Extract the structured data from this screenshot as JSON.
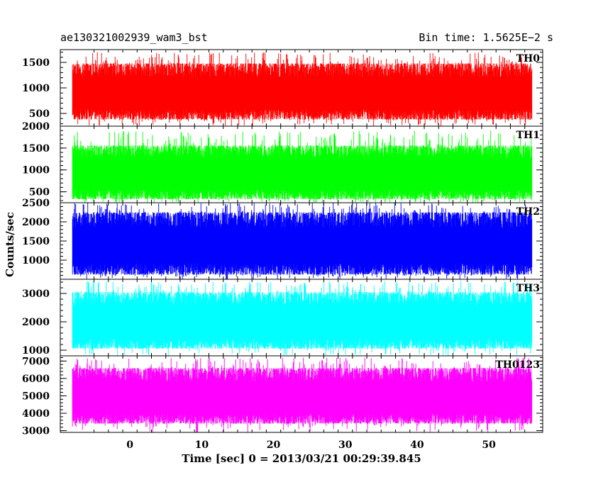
{
  "header": {
    "title_left": "ae130321002939_wam3_bst",
    "title_right": "Bin time: 1.5625E−2 s"
  },
  "axes": {
    "xlabel": "Time [sec] 0 = 2013/03/21 00:29:39.845",
    "ylabel": "Counts/sec"
  },
  "chart_data": {
    "type": "line",
    "x_range": [
      -8.0,
      56.0
    ],
    "xlim": [
      -9.7,
      57.5
    ],
    "x_ticks": [
      0,
      10,
      20,
      30,
      40,
      50
    ],
    "panels": [
      {
        "name": "TH0",
        "color": "#ff0000",
        "ylim": [
          250,
          1750
        ],
        "y_ticks": [
          500,
          1000,
          1500
        ],
        "low": 380,
        "high": 1480,
        "peak": 1700
      },
      {
        "name": "TH1",
        "color": "#00ff00",
        "ylim": [
          250,
          2000
        ],
        "y_ticks": [
          500,
          1000,
          1500,
          2000
        ],
        "low": 330,
        "high": 1560,
        "peak": 1900
      },
      {
        "name": "TH2",
        "color": "#0000ff",
        "ylim": [
          500,
          2500
        ],
        "y_ticks": [
          1000,
          1500,
          2000,
          2500
        ],
        "low": 620,
        "high": 2250,
        "peak": 2500
      },
      {
        "name": "TH3",
        "color": "#00ffff",
        "ylim": [
          800,
          3500
        ],
        "y_ticks": [
          1000,
          2000,
          3000
        ],
        "low": 1050,
        "high": 3050,
        "peak": 3450
      },
      {
        "name": "TH0123",
        "color": "#ff00ff",
        "ylim": [
          2900,
          7300
        ],
        "y_ticks": [
          3000,
          4000,
          5000,
          6000,
          7000
        ],
        "low": 3400,
        "high": 6600,
        "peak": 7200
      }
    ]
  }
}
